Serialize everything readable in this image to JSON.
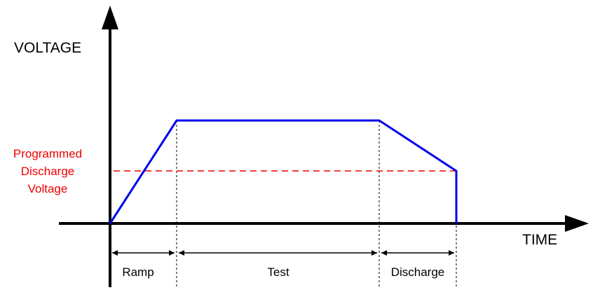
{
  "labels": {
    "y_axis": "VOLTAGE",
    "x_axis": "TIME",
    "discharge_voltage": [
      "Programmed",
      "Discharge",
      "Voltage"
    ],
    "phases": {
      "ramp": "Ramp",
      "test": "Test",
      "discharge": "Discharge"
    }
  },
  "colors": {
    "waveform": "#0000EE",
    "discharge_level": "#EE0000",
    "axes": "#000000",
    "text": "#000000"
  }
}
